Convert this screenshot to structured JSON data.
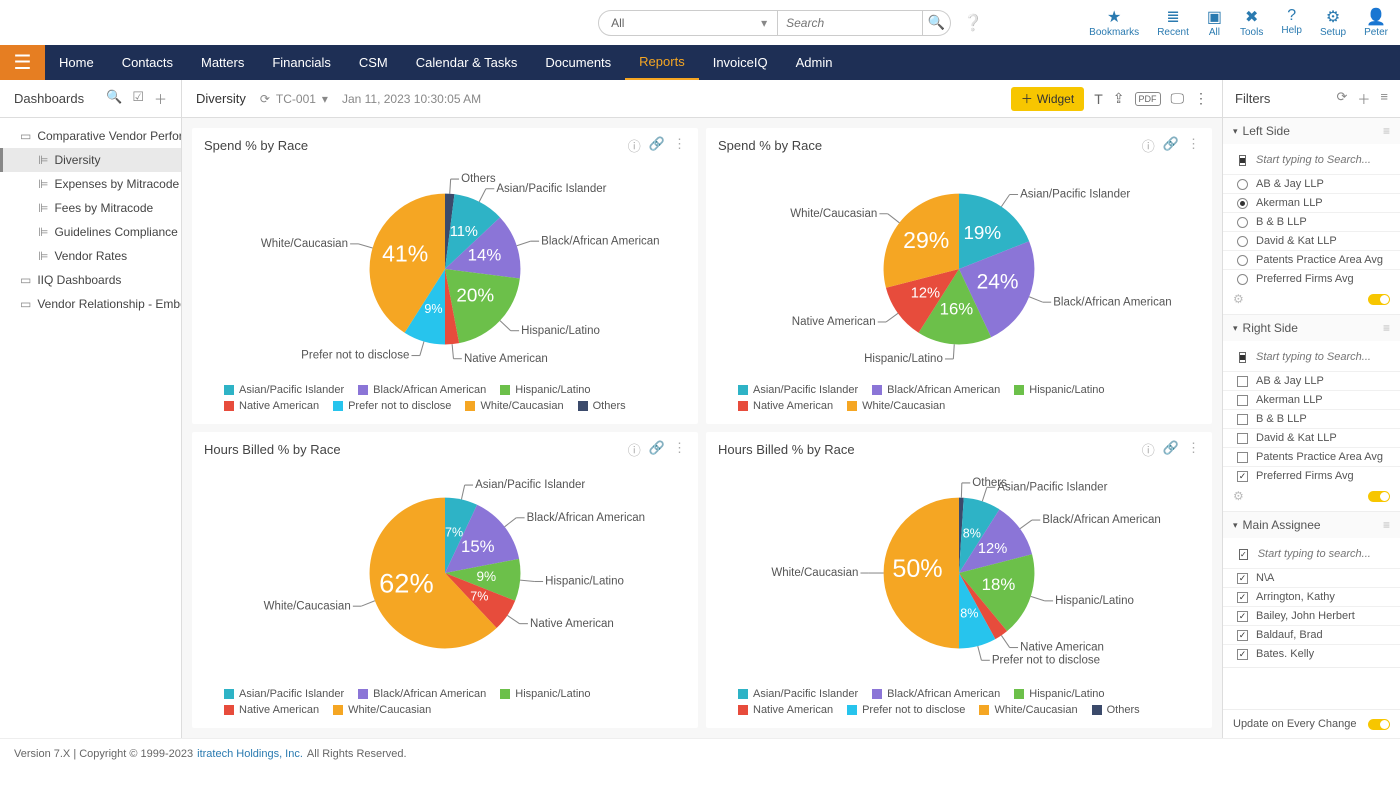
{
  "topbar": {
    "search_select": "All",
    "search_placeholder": "Search",
    "icons": [
      {
        "glyph": "★",
        "label": "Bookmarks"
      },
      {
        "glyph": "≣",
        "label": "Recent"
      },
      {
        "glyph": "▣",
        "label": "All"
      },
      {
        "glyph": "✖",
        "label": "Tools"
      },
      {
        "glyph": "?",
        "label": "Help"
      },
      {
        "glyph": "⚙",
        "label": "Setup"
      },
      {
        "glyph": "👤",
        "label": "Peter"
      }
    ]
  },
  "nav": [
    "Home",
    "Contacts",
    "Matters",
    "Financials",
    "CSM",
    "Calendar & Tasks",
    "Documents",
    "Reports",
    "InvoiceIQ",
    "Admin"
  ],
  "nav_active": "Reports",
  "sidebar": {
    "title": "Dashboards",
    "items": [
      {
        "label": "Comparative Vendor Performa...",
        "sub": false
      },
      {
        "label": "Diversity",
        "sub": true,
        "active": true
      },
      {
        "label": "Expenses by Mitracode",
        "sub": true
      },
      {
        "label": "Fees by Mitracode",
        "sub": true
      },
      {
        "label": "Guidelines Compliance",
        "sub": true
      },
      {
        "label": "Vendor Rates",
        "sub": true
      },
      {
        "label": "IIQ Dashboards",
        "sub": false
      },
      {
        "label": "Vendor Relationship - Embed ...",
        "sub": false
      }
    ]
  },
  "header": {
    "title": "Diversity",
    "tc": "TC-001",
    "date": "Jan 11, 2023 10:30:05 AM",
    "widget_btn": "Widget"
  },
  "colors": {
    "asian": "#2eb3c6",
    "black": "#8b75d7",
    "hispanic": "#6cc04a",
    "native": "#e74c3c",
    "prefer": "#27c4ed",
    "white": "#f5a623",
    "others": "#3b4a6b"
  },
  "legends": {
    "full": [
      "Asian/Pacific Islander",
      "Black/African American",
      "Hispanic/Latino",
      "Native American",
      "Prefer not to disclose",
      "White/Caucasian",
      "Others"
    ],
    "noothers": [
      "Asian/Pacific Islander",
      "Black/African American",
      "Hispanic/Latino",
      "Native American",
      "White/Caucasian"
    ],
    "noprefer": [
      "Asian/Pacific Islander",
      "Black/African American",
      "Hispanic/Latino",
      "Native American",
      "Prefer not to disclose",
      "White/Caucasian",
      "Others"
    ]
  },
  "charts": [
    {
      "title": "Spend % by Race",
      "slices": [
        {
          "key": "others",
          "label": "Others",
          "pct": 2,
          "showPct": false
        },
        {
          "key": "asian",
          "label": "Asian/Pacific Islander",
          "pct": 11,
          "showPct": true,
          "size": 14
        },
        {
          "key": "black",
          "label": "Black/African American",
          "pct": 14,
          "showPct": true,
          "size": 16
        },
        {
          "key": "hispanic",
          "label": "Hispanic/Latino",
          "pct": 20,
          "showPct": true,
          "size": 18
        },
        {
          "key": "native",
          "label": "Native American",
          "pct": 3,
          "showPct": false
        },
        {
          "key": "prefer",
          "label": "Prefer not to disclose",
          "pct": 9,
          "showPct": true,
          "size": 12
        },
        {
          "key": "white",
          "label": "White/Caucasian",
          "pct": 41,
          "showPct": true,
          "size": 22
        }
      ],
      "legendKey": "full"
    },
    {
      "title": "Spend % by Race",
      "slices": [
        {
          "key": "asian",
          "label": "Asian/Pacific Islander",
          "pct": 19,
          "showPct": true,
          "size": 18
        },
        {
          "key": "black",
          "label": "Black/African American",
          "pct": 24,
          "showPct": true,
          "size": 20
        },
        {
          "key": "hispanic",
          "label": "Hispanic/Latino",
          "pct": 16,
          "showPct": true,
          "size": 16
        },
        {
          "key": "native",
          "label": "Native American",
          "pct": 12,
          "showPct": true,
          "size": 14
        },
        {
          "key": "white",
          "label": "White/Caucasian",
          "pct": 29,
          "showPct": true,
          "size": 22
        }
      ],
      "legendKey": "noothers"
    },
    {
      "title": "Hours Billed % by Race",
      "slices": [
        {
          "key": "asian",
          "label": "Asian/Pacific Islander",
          "pct": 7,
          "showPct": true,
          "size": 12
        },
        {
          "key": "black",
          "label": "Black/African American",
          "pct": 15,
          "showPct": true,
          "size": 16
        },
        {
          "key": "hispanic",
          "label": "Hispanic/Latino",
          "pct": 9,
          "showPct": true,
          "size": 13
        },
        {
          "key": "native",
          "label": "Native American",
          "pct": 7,
          "showPct": true,
          "size": 12
        },
        {
          "key": "white",
          "label": "White/Caucasian",
          "pct": 62,
          "showPct": true,
          "size": 26
        }
      ],
      "legendKey": "noothers"
    },
    {
      "title": "Hours Billed % by Race",
      "slices": [
        {
          "key": "others",
          "label": "Others",
          "pct": 1,
          "showPct": false
        },
        {
          "key": "asian",
          "label": "Asian/Pacific Islander",
          "pct": 8,
          "showPct": true,
          "size": 12
        },
        {
          "key": "black",
          "label": "Black/African American",
          "pct": 12,
          "showPct": true,
          "size": 14
        },
        {
          "key": "hispanic",
          "label": "Hispanic/Latino",
          "pct": 18,
          "showPct": true,
          "size": 16
        },
        {
          "key": "native",
          "label": "Native American",
          "pct": 3,
          "showPct": false
        },
        {
          "key": "prefer",
          "label": "Prefer not to disclose",
          "pct": 8,
          "showPct": true,
          "size": 12
        },
        {
          "key": "white",
          "label": "White/Caucasian",
          "pct": 50,
          "showPct": true,
          "size": 24
        }
      ],
      "legendKey": "noprefer"
    }
  ],
  "filters": {
    "title": "Filters",
    "groups": [
      {
        "name": "Left Side",
        "type": "radio",
        "search": "Start typing to Search...",
        "items": [
          {
            "label": "AB & Jay LLP",
            "sel": false
          },
          {
            "label": "Akerman LLP",
            "sel": true
          },
          {
            "label": "B & B LLP",
            "sel": false
          },
          {
            "label": "David & Kat LLP",
            "sel": false
          },
          {
            "label": "Patents Practice Area Avg",
            "sel": false
          },
          {
            "label": "Preferred Firms Avg",
            "sel": false
          }
        ]
      },
      {
        "name": "Right Side",
        "type": "check",
        "search": "Start typing to Search...",
        "items": [
          {
            "label": "AB & Jay LLP",
            "sel": false
          },
          {
            "label": "Akerman LLP",
            "sel": false
          },
          {
            "label": "B & B LLP",
            "sel": false
          },
          {
            "label": "David & Kat LLP",
            "sel": false
          },
          {
            "label": "Patents Practice Area Avg",
            "sel": false
          },
          {
            "label": "Preferred Firms Avg",
            "sel": true
          }
        ]
      },
      {
        "name": "Main Assignee",
        "type": "check",
        "search": "Start typing to search...",
        "items": [
          {
            "label": "N\\A",
            "sel": true
          },
          {
            "label": "Arrington, Kathy",
            "sel": true
          },
          {
            "label": "Bailey, John Herbert",
            "sel": true
          },
          {
            "label": "Baldauf, Brad",
            "sel": true
          },
          {
            "label": "Bates. Kelly",
            "sel": true
          }
        ]
      }
    ],
    "update": "Update on Every Change"
  },
  "footer": {
    "version": "Version 7.X | Copyright © 1999-2023",
    "company": "itratech Holdings, Inc.",
    "rights": "All Rights Reserved."
  }
}
